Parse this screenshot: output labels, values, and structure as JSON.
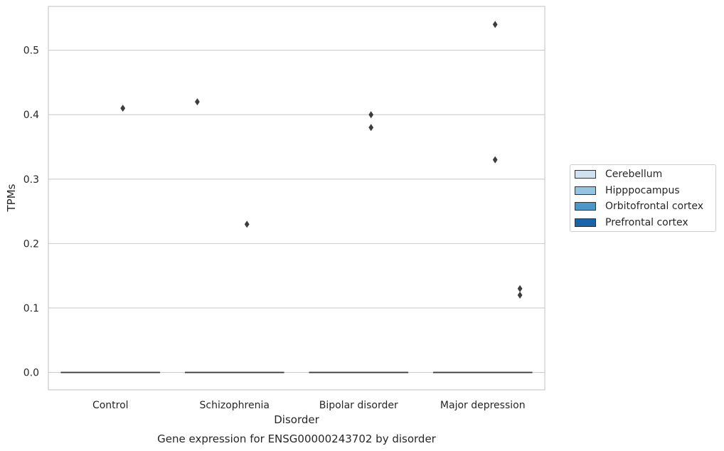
{
  "chart_data": {
    "type": "box",
    "title": "Gene expression for ENSG00000243702 by disorder",
    "xlabel": "Disorder",
    "ylabel": "TPMs",
    "categories": [
      "Control",
      "Schizophrenia",
      "Bipolar disorder",
      "Major depression"
    ],
    "ylim": [
      -0.027,
      0.568
    ],
    "yticks": [
      "0.0",
      "0.1",
      "0.2",
      "0.3",
      "0.4",
      "0.5"
    ],
    "grid": true,
    "legend_position": "right",
    "series": [
      {
        "name": "Cerebellum",
        "color": "#d0e1f2"
      },
      {
        "name": "Hipppocampus",
        "color": "#94c4df"
      },
      {
        "name": "Orbitofrontal cortex",
        "color": "#4a98c9"
      },
      {
        "name": "Prefrontal cortex",
        "color": "#1764ab"
      }
    ],
    "boxes": [
      {
        "category": "Control",
        "median": 0.0,
        "q1": 0.0,
        "q3": 0.0,
        "whisker_low": 0.0,
        "whisker_high": 0.0
      },
      {
        "category": "Schizophrenia",
        "median": 0.0,
        "q1": 0.0,
        "q3": 0.0,
        "whisker_low": 0.0,
        "whisker_high": 0.0
      },
      {
        "category": "Bipolar disorder",
        "median": 0.0,
        "q1": 0.0,
        "q3": 0.0,
        "whisker_low": 0.0,
        "whisker_high": 0.0
      },
      {
        "category": "Major depression",
        "median": 0.0,
        "q1": 0.0,
        "q3": 0.0,
        "whisker_low": 0.0,
        "whisker_high": 0.0
      }
    ],
    "outliers": [
      {
        "category": "Control",
        "series": "Orbitofrontal cortex",
        "value": 0.41
      },
      {
        "category": "Schizophrenia",
        "series": "Cerebellum",
        "value": 0.42
      },
      {
        "category": "Schizophrenia",
        "series": "Orbitofrontal cortex",
        "value": 0.23
      },
      {
        "category": "Bipolar disorder",
        "series": "Orbitofrontal cortex",
        "value": 0.4
      },
      {
        "category": "Bipolar disorder",
        "series": "Orbitofrontal cortex",
        "value": 0.38
      },
      {
        "category": "Major depression",
        "series": "Orbitofrontal cortex",
        "value": 0.54
      },
      {
        "category": "Major depression",
        "series": "Orbitofrontal cortex",
        "value": 0.33
      },
      {
        "category": "Major depression",
        "series": "Prefrontal cortex",
        "value": 0.13
      },
      {
        "category": "Major depression",
        "series": "Prefrontal cortex",
        "value": 0.12
      }
    ]
  }
}
